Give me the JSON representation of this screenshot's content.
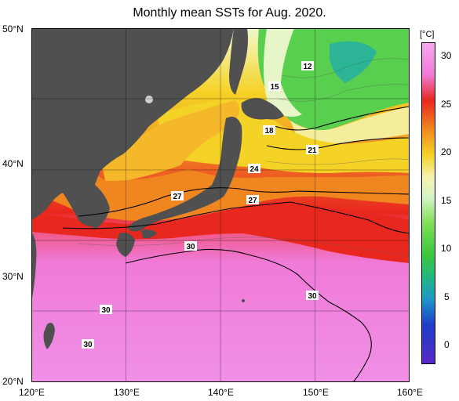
{
  "title": "Monthly mean SSTs for Aug. 2020.",
  "x_labels": [
    "120°E",
    "130°E",
    "140°E",
    "150°E",
    "160°E"
  ],
  "y_labels": [
    "50°N",
    "40°N",
    "30°N",
    "20°N"
  ],
  "colorbar": {
    "unit": "[°C]",
    "ticks": [
      "30",
      "25",
      "20",
      "15",
      "10",
      "5",
      "0"
    ]
  },
  "contour_labels": {
    "c12": "12",
    "c15": "15",
    "c18": "18",
    "c21": "21",
    "c24": "24",
    "c27a": "27",
    "c27b": "27",
    "c30a": "30",
    "c30b": "30",
    "c30c": "30",
    "c30d": "30"
  },
  "colors": {
    "land": "#505050",
    "warm_pink": "#f07ad8",
    "red": "#e8301e",
    "orange": "#f08a1e",
    "yellow": "#f5d21e",
    "light_yellow": "#f6f09a",
    "green": "#50d050",
    "teal": "#2bb496"
  }
}
